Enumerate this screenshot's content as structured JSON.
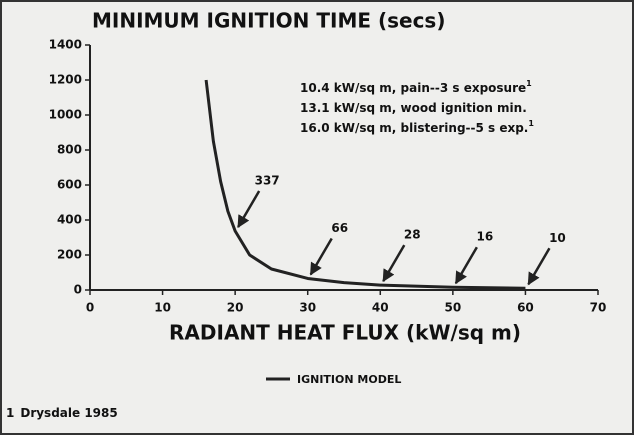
{
  "chart_data": {
    "type": "line",
    "title": "MINIMUM IGNITION TIME (secs)",
    "x_label": "RADIANT HEAT FLUX (kW/sq m)",
    "x": [
      16,
      17,
      18,
      19,
      20,
      22,
      25,
      30,
      35,
      40,
      50,
      60
    ],
    "series": [
      {
        "name": "IGNITION MODEL",
        "color": "#222222",
        "values": [
          1200,
          850,
          620,
          450,
          337,
          200,
          120,
          66,
          42,
          28,
          16,
          10
        ]
      }
    ],
    "xlim": [
      0,
      70
    ],
    "xticks": [
      0,
      10,
      20,
      30,
      40,
      50,
      60,
      70
    ],
    "ylim": [
      0,
      1400
    ],
    "yticks": [
      0,
      200,
      400,
      600,
      800,
      1000,
      1200,
      1400
    ],
    "annotations": [
      {
        "x": 20,
        "y": 337
      },
      {
        "x": 30,
        "y": 66
      },
      {
        "x": 40,
        "y": 28
      },
      {
        "x": 50,
        "y": 16
      },
      {
        "x": 60,
        "y": 10
      }
    ],
    "notes": [
      {
        "text": "10.4 kW/sq m, pain--3 s exposure",
        "ref": "1"
      },
      {
        "text": "13.1 kW/sq m, wood ignition min."
      },
      {
        "text": "16.0 kW/sq m, blistering--5 s exp.",
        "ref": "1"
      }
    ],
    "footnote": {
      "ref": "1",
      "text": "Drysdale 1985"
    }
  }
}
